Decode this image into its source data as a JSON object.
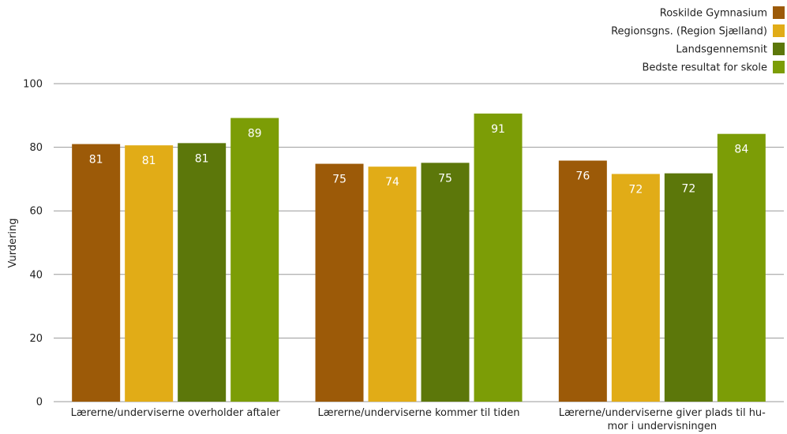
{
  "chart_data": {
    "type": "bar",
    "title": "",
    "xlabel": "",
    "ylabel": "Vurdering",
    "ylim": [
      0,
      100
    ],
    "yticks": [
      0,
      20,
      40,
      60,
      80,
      100
    ],
    "grid": true,
    "legend_position": "top-right",
    "categories": [
      [
        "Lærerne/underviserne overholder aftaler"
      ],
      [
        "Lærerne/underviserne kommer til tiden"
      ],
      [
        "Lærerne/underviserne giver plads til hu-",
        "mor i undervisningen"
      ]
    ],
    "series": [
      {
        "name": "Roskilde Gymnasium",
        "color": "#9c5a08",
        "values": [
          81,
          74.8,
          75.8
        ],
        "labels": [
          "81",
          "75",
          "76"
        ]
      },
      {
        "name": "Regionsgns. (Region Sjælland)",
        "color": "#e1ac17",
        "values": [
          80.6,
          73.9,
          71.6
        ],
        "labels": [
          "81",
          "74",
          "72"
        ]
      },
      {
        "name": "Landsgennemsnit",
        "color": "#5c770a",
        "values": [
          81.3,
          75.1,
          71.8
        ],
        "labels": [
          "81",
          "75",
          "72"
        ]
      },
      {
        "name": "Bedste resultat for skole",
        "color": "#7c9d06",
        "values": [
          89.2,
          90.6,
          84.2
        ],
        "labels": [
          "89",
          "91",
          "84"
        ]
      }
    ]
  }
}
